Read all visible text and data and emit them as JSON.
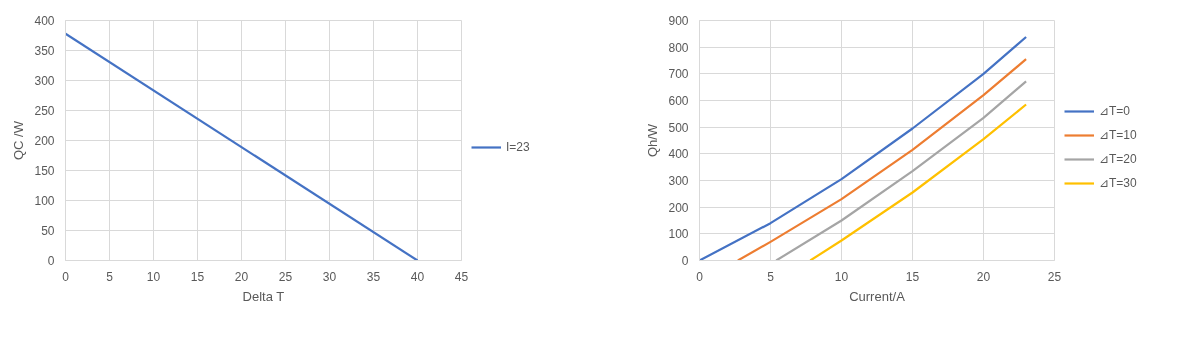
{
  "chart_data": [
    {
      "type": "line",
      "xlabel": "Delta T",
      "ylabel": "QC /W",
      "x": [
        0,
        40
      ],
      "xlim": [
        0,
        45
      ],
      "xticks": [
        0,
        5,
        10,
        15,
        20,
        25,
        30,
        35,
        40,
        45
      ],
      "ylim": [
        0,
        400
      ],
      "yticks": [
        0,
        50,
        100,
        150,
        200,
        250,
        300,
        350,
        400
      ],
      "grid": true,
      "legend": "right",
      "series": [
        {
          "name": "I=23",
          "color": "#4472c4",
          "values": [
            378,
            0
          ]
        }
      ]
    },
    {
      "type": "line",
      "xlabel": "Current/A",
      "ylabel": "Qh/W",
      "xlim": [
        0,
        25
      ],
      "xticks": [
        0,
        5,
        10,
        15,
        20,
        25
      ],
      "ylim": [
        0,
        900
      ],
      "yticks": [
        0,
        100,
        200,
        300,
        400,
        500,
        600,
        700,
        800,
        900
      ],
      "grid": true,
      "legend": "right",
      "series": [
        {
          "name": "⊿T=0",
          "color": "#4472c4",
          "x": [
            0,
            5,
            10,
            15,
            20,
            23
          ],
          "values": [
            0,
            140,
            305,
            495,
            700,
            838
          ]
        },
        {
          "name": "⊿T=10",
          "color": "#ed7d31",
          "x": [
            2.7,
            5,
            10,
            15,
            20,
            23
          ],
          "values": [
            0,
            70,
            230,
            415,
            620,
            755
          ]
        },
        {
          "name": "⊿T=20",
          "color": "#a5a5a5",
          "x": [
            5.4,
            10,
            15,
            20,
            23
          ],
          "values": [
            0,
            150,
            335,
            535,
            672
          ]
        },
        {
          "name": "⊿T=30",
          "color": "#ffc000",
          "x": [
            7.8,
            10,
            15,
            20,
            23
          ],
          "values": [
            0,
            75,
            255,
            455,
            585
          ]
        }
      ]
    }
  ]
}
